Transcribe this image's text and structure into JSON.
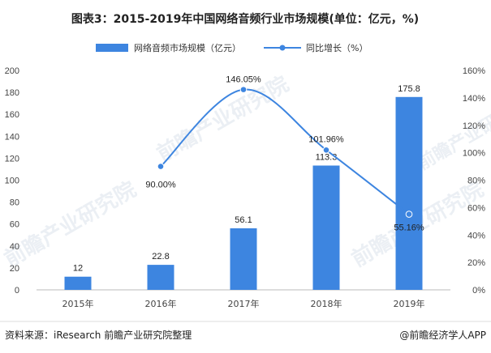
{
  "title": "图表3：2015-2019年中国网络音频行业市场规模(单位：亿元，%)",
  "watermark_text": "前瞻产业研究院",
  "footer": {
    "source": "资料来源：iResearch 前瞻产业研究院整理",
    "credit": "@前瞻经济学人APP"
  },
  "chart_data": {
    "type": "bar",
    "categories": [
      "2015年",
      "2016年",
      "2017年",
      "2018年",
      "2019年"
    ],
    "series": [
      {
        "name": "网络音频市场规模（亿元）",
        "type": "bar",
        "axis": "left",
        "color": "#3d85e0",
        "values": [
          12,
          22.8,
          56.1,
          113.3,
          175.8
        ],
        "labels": [
          "12",
          "22.8",
          "56.1",
          "113.3",
          "175.8"
        ]
      },
      {
        "name": "同比增长（%）",
        "type": "line",
        "axis": "right",
        "color": "#3d85e0",
        "values": [
          null,
          90.0,
          146.05,
          101.96,
          55.16
        ],
        "labels": [
          "",
          "90.00%",
          "146.05%",
          "101.96%",
          "55.16%"
        ]
      }
    ],
    "y_left": {
      "min": 0,
      "max": 200,
      "ticks": [
        0,
        20,
        40,
        60,
        80,
        100,
        120,
        140,
        160,
        180,
        200
      ],
      "tick_labels": [
        "0",
        "20",
        "40",
        "60",
        "80",
        "100",
        "120",
        "140",
        "160",
        "180",
        "200"
      ]
    },
    "y_right": {
      "min": 0,
      "max": 160,
      "ticks": [
        0,
        20,
        40,
        60,
        80,
        100,
        120,
        140,
        160
      ],
      "tick_labels": [
        "0%",
        "20%",
        "40%",
        "60%",
        "80%",
        "100%",
        "120%",
        "140%",
        "160%"
      ]
    },
    "legend_position": "top",
    "grid": false
  }
}
